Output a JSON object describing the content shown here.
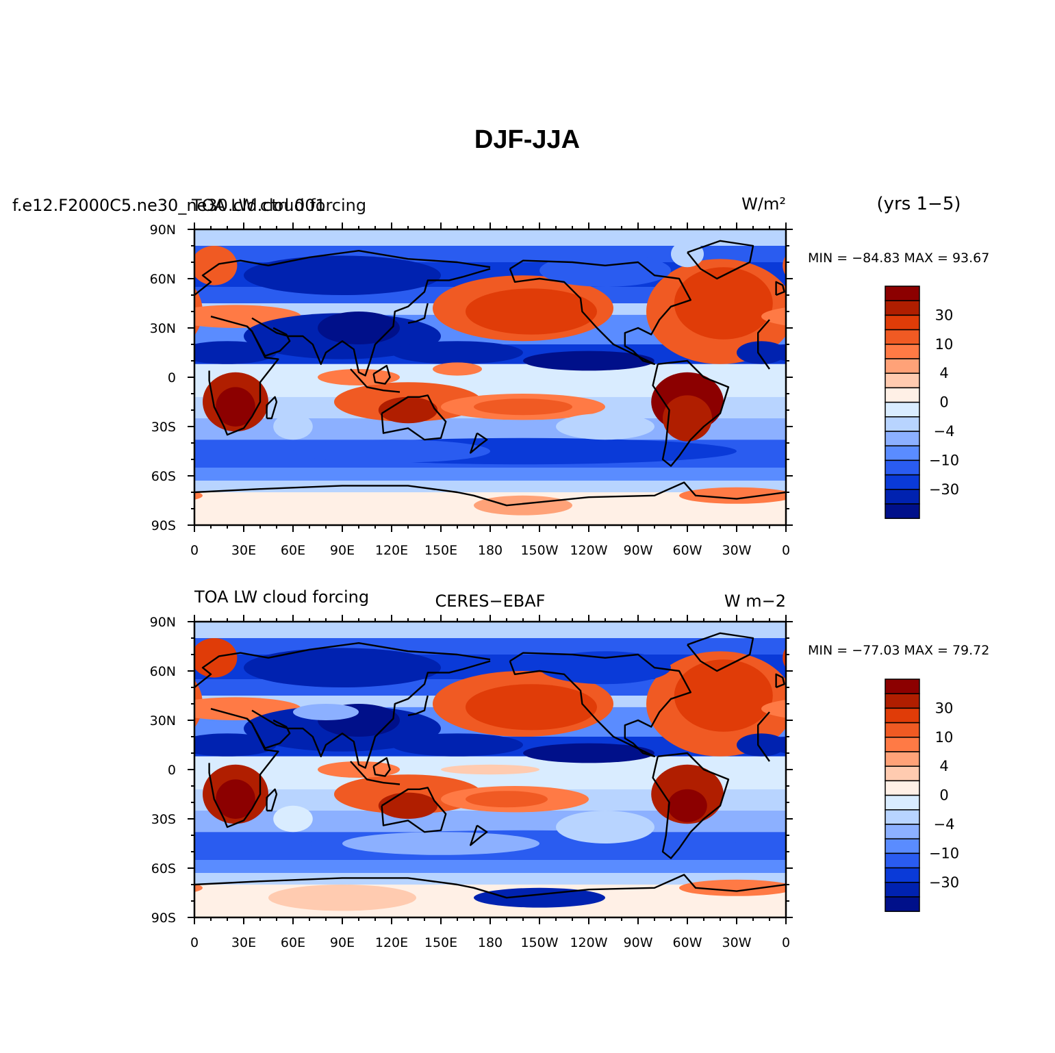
{
  "figure": {
    "title": "DJF-JJA"
  },
  "x_ticks": [
    "0",
    "30E",
    "60E",
    "90E",
    "120E",
    "150E",
    "180",
    "150W",
    "120W",
    "90W",
    "60W",
    "30W",
    "0"
  ],
  "y_ticks": [
    "90N",
    "60N",
    "30N",
    "0",
    "30S",
    "60S",
    "90S"
  ],
  "colorbar": {
    "labels": [
      "30",
      "10",
      "4",
      "0",
      "−4",
      "−10",
      "−30"
    ],
    "colors": [
      "#8c0000",
      "#b01e00",
      "#e03c08",
      "#f05a23",
      "#ff7a45",
      "#ffa278",
      "#ffcbb0",
      "#fff0e6",
      "#d9ecff",
      "#b8d4ff",
      "#8cb0ff",
      "#5a8cff",
      "#2a5cf0",
      "#0a3ad8",
      "#0022b0",
      "#00108a"
    ]
  },
  "panels": [
    {
      "left_title": "f.e12.F2000C5.ne30_ne30.cld.ctrl.001",
      "center_title": "TOA LW cloud forcing",
      "units": "W/m²",
      "right_note": "(yrs 1−5)",
      "stats": "MIN = −84.83 MAX =  93.67"
    },
    {
      "left_title": "TOA LW cloud forcing",
      "center_title": "CERES−EBAF",
      "units": "W m−2",
      "right_note": "",
      "stats": "MIN = −77.03 MAX =  79.72"
    }
  ]
}
